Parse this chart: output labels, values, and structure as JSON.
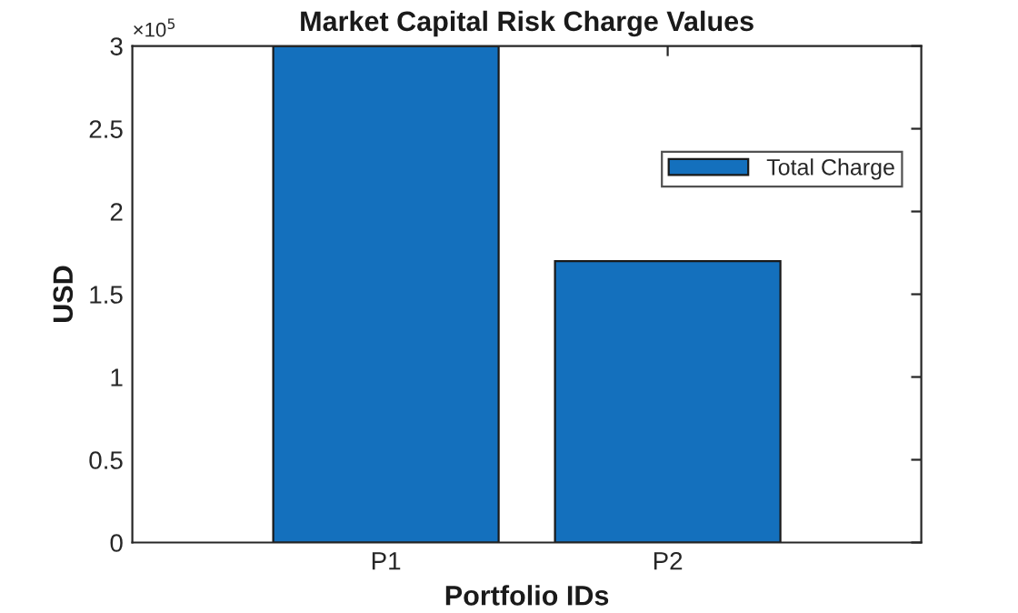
{
  "chart_data": {
    "type": "bar",
    "title": "Market Capital Risk Charge Values",
    "xlabel": "Portfolio IDs",
    "ylabel": "USD",
    "categories": [
      "P1",
      "P2"
    ],
    "series": [
      {
        "name": "Total Charge",
        "color": "#1470bd",
        "values": [
          3,
          1.7
        ]
      }
    ],
    "ylim": [
      0,
      3
    ],
    "yticks": [
      0,
      0.5,
      1,
      1.5,
      2,
      2.5,
      3
    ],
    "annotations": [
      "×10$^{5}$"
    ],
    "legend": "top right",
    "grid": false
  }
}
